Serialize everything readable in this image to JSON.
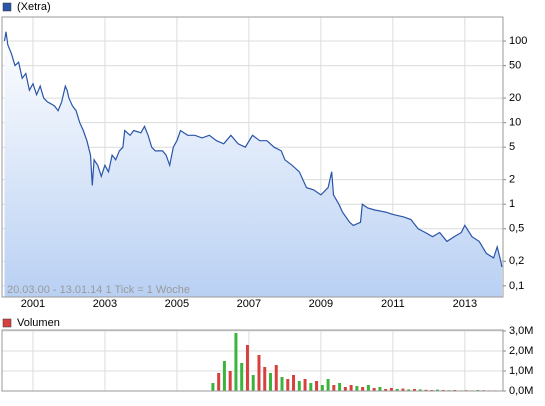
{
  "chart_data": [
    {
      "type": "line",
      "annotation": "20.03.00 - 13.01.14   1 Tick = 1 Woche",
      "log_scale": true,
      "grid": true,
      "xlim": [
        2000.14,
        2014.06
      ],
      "xticks": [
        2001,
        2003,
        2005,
        2007,
        2009,
        2011,
        2013
      ],
      "ylim": [
        0.073,
        197
      ],
      "yticks": [
        {
          "value": 0.1,
          "label": "0,1"
        },
        {
          "value": 0.2,
          "label": "0,2"
        },
        {
          "value": 0.5,
          "label": "0,5"
        },
        1,
        2,
        5,
        10,
        20,
        50,
        100
      ],
      "series": [
        {
          "name": "(Xetra)",
          "color": "#2a55a8",
          "x": [
            2000.21,
            2000.25,
            2000.3,
            2000.4,
            2000.5,
            2000.6,
            2000.7,
            2000.8,
            2000.9,
            2001.0,
            2001.1,
            2001.2,
            2001.3,
            2001.4,
            2001.5,
            2001.6,
            2001.7,
            2001.8,
            2001.9,
            2001.95,
            2002.0,
            2002.1,
            2002.2,
            2002.3,
            2002.4,
            2002.5,
            2002.6,
            2002.65,
            2002.7,
            2002.8,
            2002.9,
            2003.0,
            2003.1,
            2003.2,
            2003.3,
            2003.4,
            2003.5,
            2003.55,
            2003.7,
            2003.8,
            2004.0,
            2004.1,
            2004.2,
            2004.3,
            2004.4,
            2004.6,
            2004.7,
            2004.8,
            2004.9,
            2005.0,
            2005.1,
            2005.3,
            2005.5,
            2005.7,
            2005.9,
            2006.1,
            2006.3,
            2006.5,
            2006.7,
            2006.9,
            2007.1,
            2007.3,
            2007.5,
            2007.7,
            2007.9,
            2008.0,
            2008.2,
            2008.4,
            2008.6,
            2008.8,
            2009.0,
            2009.2,
            2009.3,
            2009.35,
            2009.5,
            2009.6,
            2009.8,
            2009.9,
            2010.1,
            2010.15,
            2010.3,
            2010.5,
            2010.8,
            2011.0,
            2011.3,
            2011.5,
            2011.7,
            2011.9,
            2012.1,
            2012.3,
            2012.5,
            2012.7,
            2012.9,
            2013.0,
            2013.2,
            2013.4,
            2013.6,
            2013.8,
            2013.9,
            2014.0,
            2014.03
          ],
          "values": [
            100,
            130,
            90,
            70,
            50,
            55,
            35,
            40,
            25,
            30,
            22,
            28,
            20,
            18,
            17,
            16,
            14,
            18,
            28,
            25,
            20,
            16,
            14,
            10,
            8,
            6,
            4,
            1.7,
            3.5,
            3,
            2.2,
            3,
            2.5,
            4,
            3.5,
            4.5,
            5,
            8,
            7,
            8,
            7.5,
            9,
            7,
            5,
            4.5,
            4.5,
            4,
            3,
            5,
            6,
            8,
            7,
            7,
            6.5,
            7,
            6,
            5.5,
            7,
            5.5,
            5,
            7,
            6,
            6,
            5,
            4.5,
            3.5,
            3,
            2.5,
            1.6,
            1.5,
            1.3,
            1.6,
            2.5,
            1.3,
            1.0,
            0.8,
            0.6,
            0.55,
            0.6,
            1.0,
            0.9,
            0.85,
            0.8,
            0.75,
            0.7,
            0.65,
            0.5,
            0.45,
            0.4,
            0.45,
            0.35,
            0.4,
            0.45,
            0.55,
            0.4,
            0.35,
            0.25,
            0.22,
            0.3,
            0.2,
            0.17
          ]
        }
      ]
    },
    {
      "type": "bar",
      "grid": true,
      "xlim": [
        2000.14,
        2014.06
      ],
      "ylim": [
        0,
        3050000
      ],
      "yticks": [
        {
          "value": 0,
          "label": "0,0M"
        },
        {
          "value": 1000000,
          "label": "1,0M"
        },
        {
          "value": 2000000,
          "label": "2,0M"
        },
        {
          "value": 3000000,
          "label": "3,0M"
        }
      ],
      "series": [
        {
          "name": "Volumen",
          "color": "#d84040",
          "x": [
            2006.0,
            2006.16,
            2006.32,
            2006.48,
            2006.64,
            2006.8,
            2006.96,
            2007.12,
            2007.28,
            2007.44,
            2007.6,
            2007.76,
            2007.92,
            2008.08,
            2008.24,
            2008.4,
            2008.56,
            2008.72,
            2008.88,
            2009.04,
            2009.2,
            2009.36,
            2009.52,
            2009.68,
            2009.84,
            2010.0,
            2010.16,
            2010.32,
            2010.48,
            2010.64,
            2010.8,
            2010.96,
            2011.12,
            2011.28,
            2011.44,
            2011.6,
            2011.76,
            2011.92,
            2012.08,
            2012.24,
            2012.4,
            2012.56,
            2012.72,
            2012.88,
            2013.04,
            2013.2,
            2013.36,
            2013.52,
            2013.68,
            2013.84
          ],
          "values": [
            400000,
            900000,
            1500000,
            1000000,
            2900000,
            1400000,
            2300000,
            800000,
            1800000,
            1200000,
            900000,
            1300000,
            700000,
            600000,
            800000,
            500000,
            600000,
            400000,
            500000,
            300000,
            600000,
            300000,
            400000,
            200000,
            300000,
            250000,
            200000,
            300000,
            150000,
            200000,
            100000,
            150000,
            100000,
            120000,
            80000,
            100000,
            80000,
            60000,
            50000,
            70000,
            50000,
            40000,
            50000,
            30000,
            40000,
            30000,
            50000,
            40000,
            30000,
            30000
          ],
          "colors": [
            "#3cb43c",
            "#d84040",
            "#3cb43c",
            "#d84040",
            "#3cb43c",
            "#3cb43c",
            "#d84040",
            "#3cb43c",
            "#d84040",
            "#d84040",
            "#3cb43c",
            "#d84040",
            "#3cb43c",
            "#d84040",
            "#d84040",
            "#3cb43c",
            "#d84040",
            "#3cb43c",
            "#d84040",
            "#3cb43c",
            "#3cb43c",
            "#d84040",
            "#3cb43c",
            "#d84040",
            "#d84040",
            "#3cb43c",
            "#d84040",
            "#3cb43c",
            "#d84040",
            "#3cb43c",
            "#d84040",
            "#d84040",
            "#3cb43c",
            "#d84040",
            "#3cb43c",
            "#d84040",
            "#3cb43c",
            "#d84040",
            "#d84040",
            "#3cb43c",
            "#d84040",
            "#3cb43c",
            "#d84040",
            "#3cb43c",
            "#d84040",
            "#3cb43c",
            "#3cb43c",
            "#d84040",
            "#3cb43c",
            "#d84040"
          ]
        }
      ]
    }
  ]
}
